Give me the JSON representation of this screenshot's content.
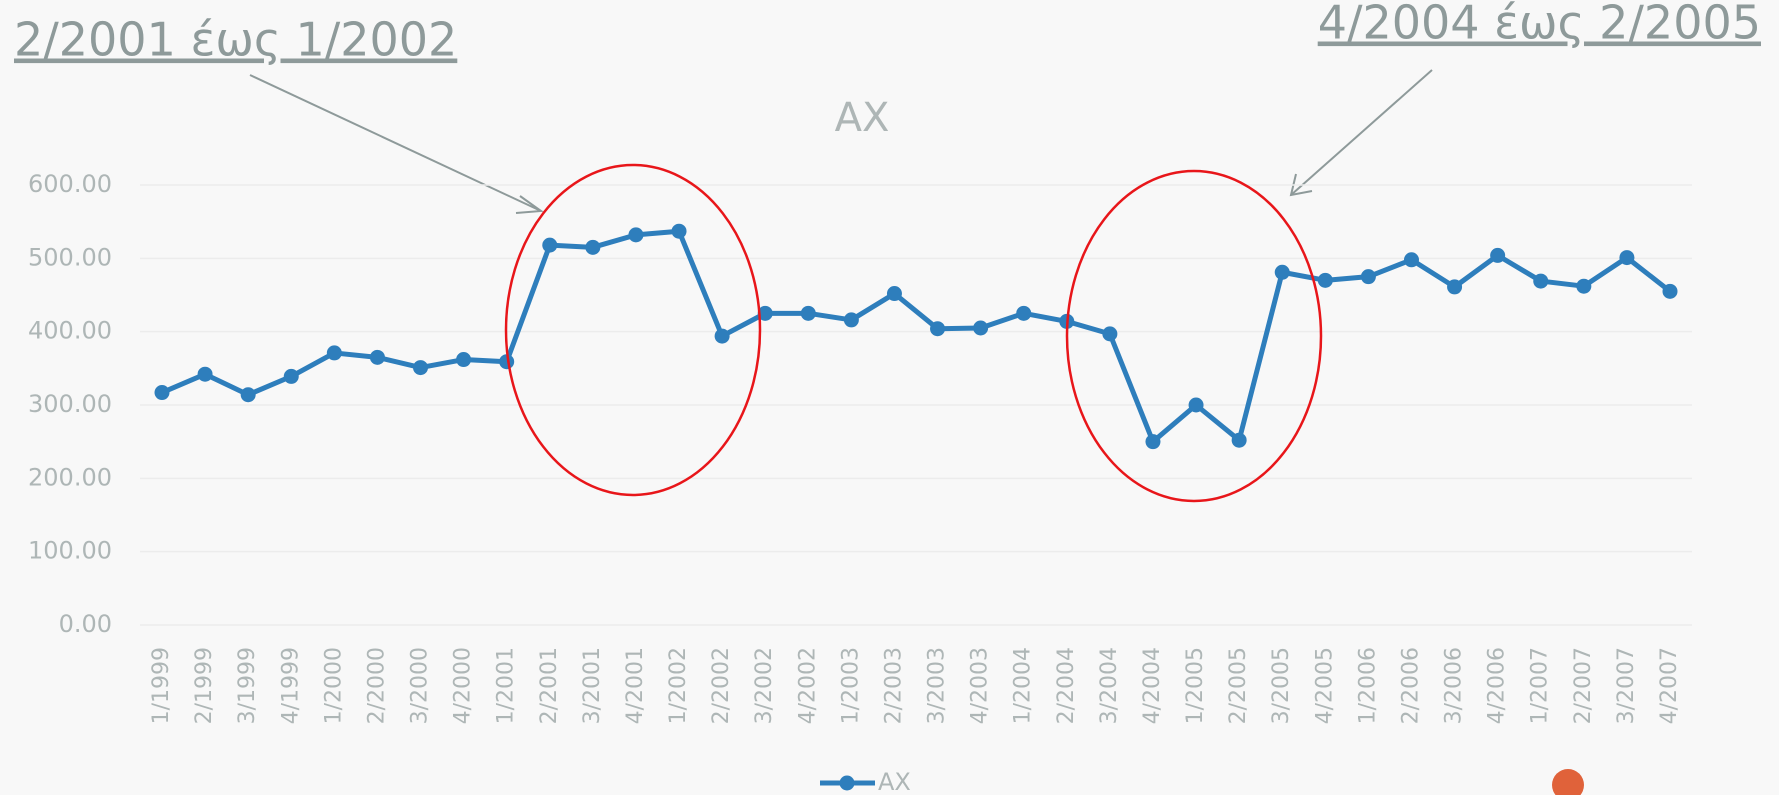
{
  "chart_data": {
    "type": "line",
    "title": "AX",
    "categories": [
      "1/1999",
      "2/1999",
      "3/1999",
      "4/1999",
      "1/2000",
      "2/2000",
      "3/2000",
      "4/2000",
      "1/2001",
      "2/2001",
      "3/2001",
      "4/2001",
      "1/2002",
      "2/2002",
      "3/2002",
      "4/2002",
      "1/2003",
      "2/2003",
      "3/2003",
      "4/2003",
      "1/2004",
      "2/2004",
      "3/2004",
      "4/2004",
      "1/2005",
      "2/2005",
      "3/2005",
      "4/2005",
      "1/2006",
      "2/2006",
      "3/2006",
      "4/2006",
      "1/2007",
      "2/2007",
      "3/2007",
      "4/2007"
    ],
    "series": [
      {
        "name": "AX",
        "color": "#2e7ebc",
        "values": [
          317,
          342,
          314,
          339,
          371,
          365,
          351,
          362,
          359,
          518,
          515,
          532,
          537,
          394,
          425,
          425,
          416,
          452,
          404,
          405,
          425,
          414,
          397,
          250,
          300,
          252,
          481,
          470,
          475,
          498,
          461,
          504,
          469,
          462,
          501,
          455
        ]
      }
    ],
    "ylim": [
      0,
      600
    ],
    "yticks": [
      {
        "value": 0,
        "label": "0.00"
      },
      {
        "value": 100,
        "label": "100.00"
      },
      {
        "value": 200,
        "label": "200.00"
      },
      {
        "value": 300,
        "label": "300.00"
      },
      {
        "value": 400,
        "label": "400.00"
      },
      {
        "value": 500,
        "label": "500.00"
      },
      {
        "value": 600,
        "label": "600.00"
      }
    ],
    "grid": true,
    "annotations": [
      "2/2001 έως 1/2002",
      "4/2004 έως 2/2005"
    ]
  }
}
